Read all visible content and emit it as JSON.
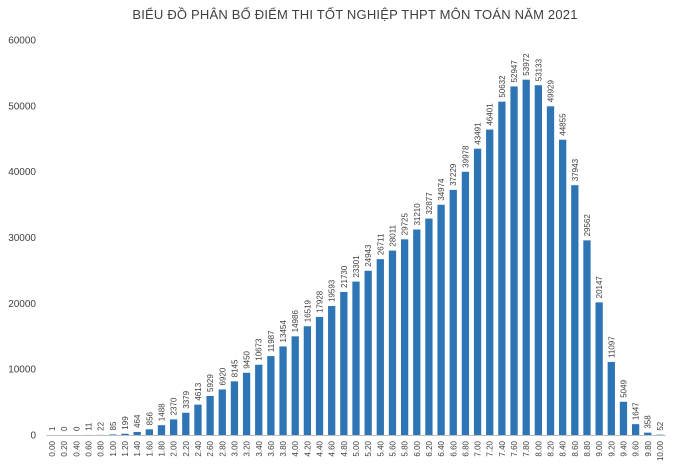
{
  "chart_data": {
    "type": "bar",
    "title": "BIỂU ĐỒ PHÂN BỐ ĐIỂM THI TỐT NGHIỆP THPT MÔN TOÁN NĂM 2021",
    "xlabel": "",
    "ylabel": "",
    "ylim": [
      0,
      60000
    ],
    "yticks": [
      0,
      10000,
      20000,
      30000,
      40000,
      50000,
      60000
    ],
    "grid": false,
    "legend": "none",
    "bar_color": "#2e75b6",
    "categories": [
      "0.00",
      "0.20",
      "0.40",
      "0.60",
      "0.80",
      "1.00",
      "1.20",
      "1.40",
      "1.60",
      "1.80",
      "2.00",
      "2.20",
      "2.40",
      "2.60",
      "2.80",
      "3.00",
      "3.20",
      "3.40",
      "3.60",
      "3.80",
      "4.00",
      "4.20",
      "4.40",
      "4.60",
      "4.80",
      "5.00",
      "5.20",
      "5.40",
      "5.60",
      "5.80",
      "6.00",
      "6.20",
      "6.40",
      "6.60",
      "6.80",
      "7.00",
      "7.20",
      "7.40",
      "7.60",
      "7.80",
      "8.00",
      "8.20",
      "8.40",
      "8.60",
      "8.80",
      "9.00",
      "9.20",
      "9.40",
      "9.60",
      "9.80",
      "10.00"
    ],
    "values": [
      1,
      0,
      0,
      11,
      22,
      85,
      199,
      464,
      856,
      1488,
      2370,
      3379,
      4613,
      5929,
      6920,
      8145,
      9450,
      10673,
      11987,
      13454,
      14986,
      16519,
      17928,
      19593,
      21730,
      23301,
      24943,
      26711,
      28011,
      29725,
      31210,
      32877,
      34974,
      37229,
      39978,
      43491,
      46401,
      50632,
      52947,
      53972,
      53133,
      49929,
      44855,
      37943,
      29562,
      20147,
      11097,
      5049,
      1647,
      358,
      52
    ]
  }
}
